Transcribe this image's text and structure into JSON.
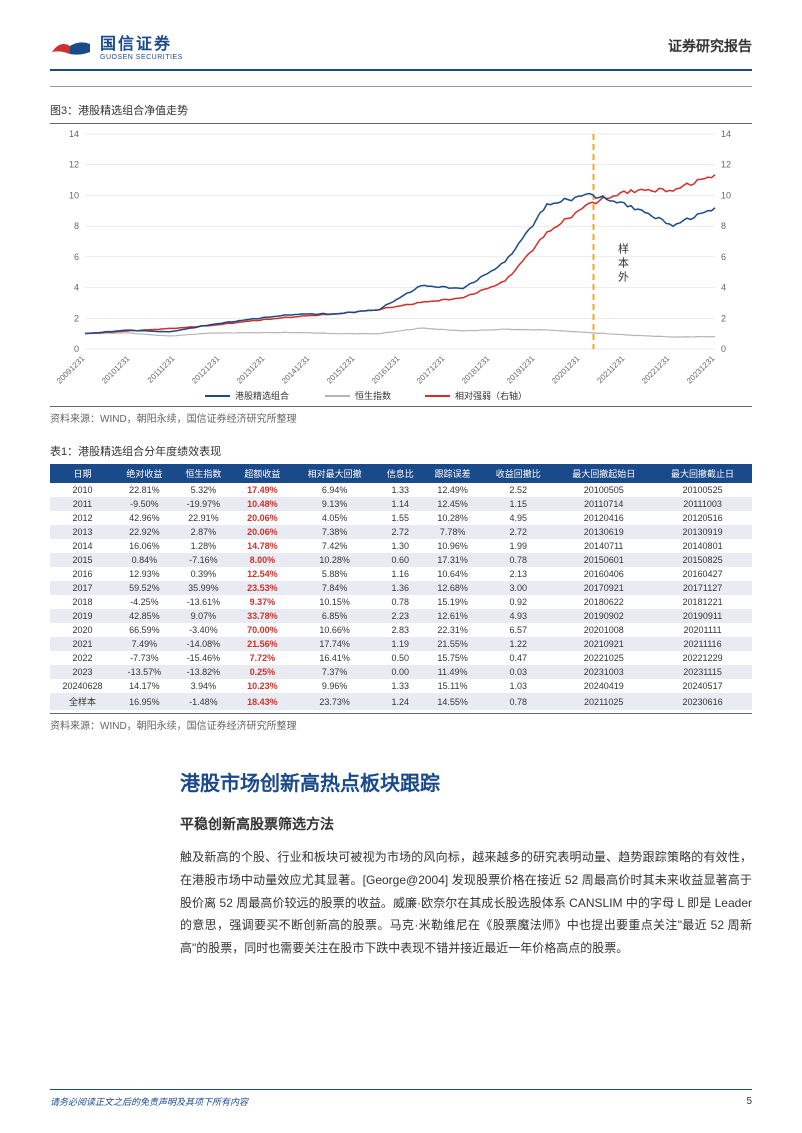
{
  "header": {
    "company_cn": "国信证券",
    "company_en": "GUOSEN SECURITIES",
    "report_type": "证券研究报告",
    "logo_red": "#d0302a",
    "logo_blue": "#1a4a8a"
  },
  "figure": {
    "title": "图3：港股精选组合净值走势",
    "source": "资料来源：WIND，朝阳永续，国信证券经济研究所整理",
    "label_sample": "样本外",
    "legend": [
      "港股精选组合",
      "恒生指数",
      "相对强弱（右轴）"
    ],
    "colors": {
      "portfolio": "#1a4a8a",
      "index": "#b5b5b5",
      "relative": "#d0302a",
      "divider": "#f5a623",
      "grid": "#d8d8d8",
      "bg": "#ffffff",
      "axis": "#666666",
      "text": "#666666"
    },
    "x_labels": [
      "20091231",
      "20101231",
      "20111231",
      "20121231",
      "20131231",
      "20141231",
      "20151231",
      "20161231",
      "20171231",
      "20181231",
      "20191231",
      "20201231",
      "20211231",
      "20221231",
      "20231231"
    ],
    "ylim_left": [
      0,
      14
    ],
    "ylim_right": [
      0,
      14
    ],
    "ytick_step": 2,
    "divider_x_index": 11.3,
    "series": {
      "portfolio": [
        1,
        1.23,
        1.11,
        1.59,
        1.96,
        2.27,
        2.29,
        2.58,
        4.12,
        3.94,
        5.63,
        9.38,
        10.08,
        9.31,
        8.05,
        9.19
      ],
      "index": [
        1,
        1.05,
        0.84,
        1.04,
        1.06,
        1.08,
        1.0,
        1.0,
        1.36,
        1.18,
        1.28,
        1.24,
        1.07,
        0.9,
        0.78,
        0.81
      ],
      "relative": [
        1,
        1.17,
        1.32,
        1.53,
        1.84,
        2.11,
        2.29,
        2.58,
        3.03,
        3.34,
        4.39,
        7.57,
        9.45,
        10.33,
        10.35,
        11.35
      ]
    }
  },
  "table": {
    "title": "表1：港股精选组合分年度绩效表现",
    "source": "资料来源：WIND，朝阳永续，国信证券经济研究所整理",
    "columns": [
      "日期",
      "绝对收益",
      "恒生指数",
      "超额收益",
      "相对最大回撤",
      "信息比",
      "跟踪误差",
      "收益回撤比",
      "最大回撤起始日",
      "最大回撤截止日"
    ],
    "rows": [
      [
        "2010",
        "22.81%",
        "5.32%",
        "17.49%",
        "6.94%",
        "1.33",
        "12.49%",
        "2.52",
        "20100505",
        "20100525"
      ],
      [
        "2011",
        "-9.50%",
        "-19.97%",
        "10.48%",
        "9.13%",
        "1.14",
        "12.45%",
        "1.15",
        "20110714",
        "20111003"
      ],
      [
        "2012",
        "42.96%",
        "22.91%",
        "20.06%",
        "4.05%",
        "1.55",
        "10.28%",
        "4.95",
        "20120416",
        "20120516"
      ],
      [
        "2013",
        "22.92%",
        "2.87%",
        "20.06%",
        "7.38%",
        "2.72",
        "7.78%",
        "2.72",
        "20130619",
        "20130919"
      ],
      [
        "2014",
        "16.06%",
        "1.28%",
        "14.78%",
        "7.42%",
        "1.30",
        "10.96%",
        "1.99",
        "20140711",
        "20140801"
      ],
      [
        "2015",
        "0.84%",
        "-7.16%",
        "8.00%",
        "10.28%",
        "0.60",
        "17.31%",
        "0.78",
        "20150601",
        "20150825"
      ],
      [
        "2016",
        "12.93%",
        "0.39%",
        "12.54%",
        "5.88%",
        "1.16",
        "10.64%",
        "2.13",
        "20160406",
        "20160427"
      ],
      [
        "2017",
        "59.52%",
        "35.99%",
        "23.53%",
        "7.84%",
        "1.36",
        "12.68%",
        "3.00",
        "20170921",
        "20171127"
      ],
      [
        "2018",
        "-4.25%",
        "-13.61%",
        "9.37%",
        "10.15%",
        "0.78",
        "15.19%",
        "0.92",
        "20180622",
        "20181221"
      ],
      [
        "2019",
        "42.85%",
        "9.07%",
        "33.78%",
        "6.85%",
        "2.23",
        "12.61%",
        "4.93",
        "20190902",
        "20190911"
      ],
      [
        "2020",
        "66.59%",
        "-3.40%",
        "70.00%",
        "10.66%",
        "2.83",
        "22.31%",
        "6.57",
        "20201008",
        "20201111"
      ],
      [
        "2021",
        "7.49%",
        "-14.08%",
        "21.56%",
        "17.74%",
        "1.19",
        "21.55%",
        "1.22",
        "20210921",
        "20211116"
      ],
      [
        "2022",
        "-7.73%",
        "-15.46%",
        "7.72%",
        "16.41%",
        "0.50",
        "15.75%",
        "0.47",
        "20221025",
        "20221229"
      ],
      [
        "2023",
        "-13.57%",
        "-13.82%",
        "0.25%",
        "7.37%",
        "0.00",
        "11.49%",
        "0.03",
        "20231003",
        "20231115"
      ],
      [
        "20240628",
        "14.17%",
        "3.94%",
        "10.23%",
        "9.96%",
        "1.33",
        "15.11%",
        "1.03",
        "20240419",
        "20240517"
      ],
      [
        "全样本",
        "16.95%",
        "-1.48%",
        "18.43%",
        "23.73%",
        "1.24",
        "14.55%",
        "0.78",
        "20211025",
        "20230616"
      ]
    ]
  },
  "section": {
    "title": "港股市场创新高热点板块跟踪",
    "sub": "平稳创新高股票筛选方法",
    "body": "触及新高的个股、行业和板块可被视为市场的风向标，越来越多的研究表明动量、趋势跟踪策略的有效性，在港股市场中动量效应尤其显著。[George@2004] 发现股票价格在接近 52 周最高价时其未来收益显著高于股价离 52 周最高价较远的股票的收益。威廉·欧奈尔在其成长股选股体系 CANSLIM 中的字母 L 即是 Leader 的意思，强调要买不断创新高的股票。马克·米勒维尼在《股票魔法师》中也提出要重点关注\"最近 52 周新高\"的股票，同时也需要关注在股市下跌中表现不错并接近最近一年价格高点的股票。"
  },
  "footer": {
    "disclaimer": "请务必阅读正文之后的免责声明及其项下所有内容",
    "page": "5"
  }
}
